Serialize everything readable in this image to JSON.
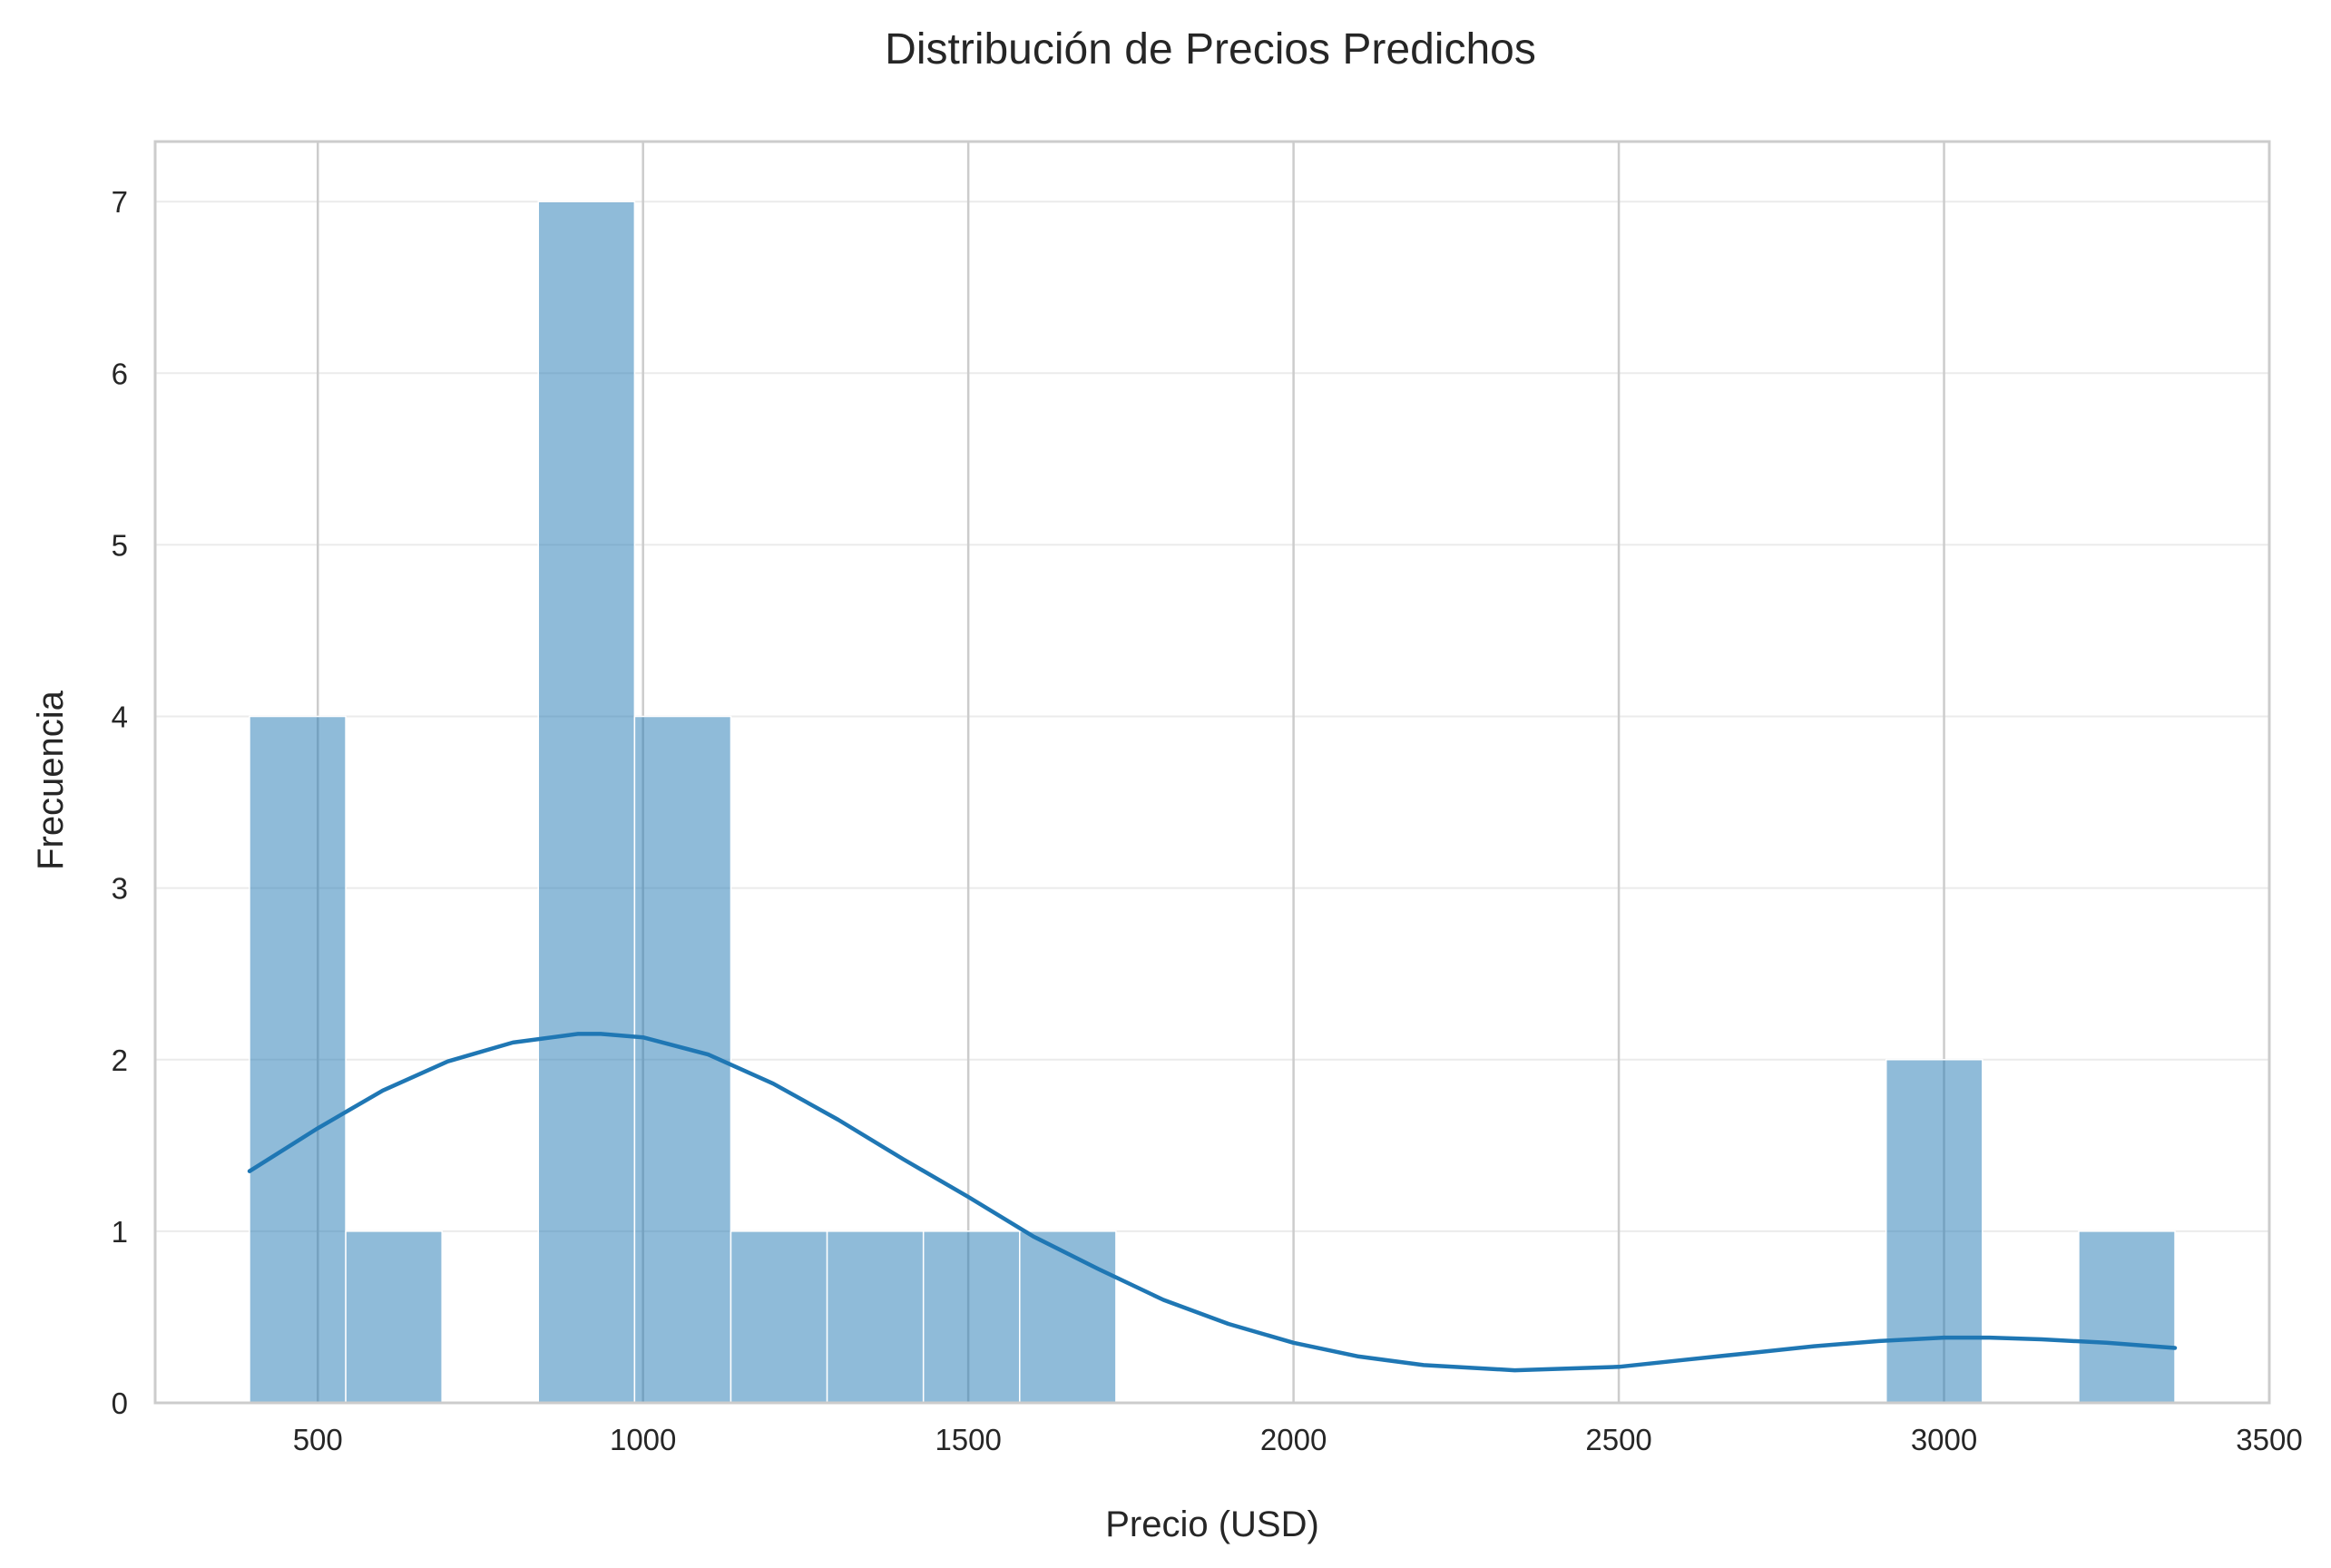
{
  "chart_data": {
    "type": "bar",
    "title": "Distribución de Precios Predichos",
    "xlabel": "Precio (USD)",
    "ylabel": "Frecuencia",
    "xlim": [
      250,
      3500
    ],
    "ylim": [
      0,
      7.35
    ],
    "xticks": [
      500,
      1000,
      1500,
      2000,
      2500,
      3000,
      3500
    ],
    "yticks": [
      0,
      1,
      2,
      3,
      4,
      5,
      6,
      7
    ],
    "grid": true,
    "bin_edges": [
      395,
      543,
      691,
      839,
      987,
      1135,
      1283,
      1431,
      1579,
      1727,
      1875,
      2023,
      2171,
      2319,
      2467,
      2615,
      2763,
      2911,
      3059,
      3207,
      3355
    ],
    "counts": [
      4,
      1,
      0,
      7,
      4,
      1,
      1,
      1,
      1,
      0,
      0,
      0,
      0,
      0,
      0,
      0,
      0,
      2,
      0,
      1
    ],
    "kde": {
      "x": [
        395,
        500,
        600,
        700,
        800,
        900,
        935,
        1000,
        1100,
        1200,
        1300,
        1400,
        1500,
        1600,
        1700,
        1800,
        1900,
        2000,
        2100,
        2200,
        2340,
        2500,
        2600,
        2700,
        2800,
        2900,
        3000,
        3070,
        3150,
        3250,
        3355
      ],
      "y": [
        1.35,
        1.6,
        1.82,
        1.99,
        2.1,
        2.15,
        2.15,
        2.13,
        2.03,
        1.86,
        1.65,
        1.42,
        1.2,
        0.97,
        0.78,
        0.6,
        0.46,
        0.35,
        0.27,
        0.22,
        0.19,
        0.21,
        0.25,
        0.29,
        0.33,
        0.36,
        0.38,
        0.38,
        0.37,
        0.35,
        0.32
      ]
    },
    "colors": {
      "bar": "#1f77b4",
      "kde": "#1f77b4"
    }
  }
}
